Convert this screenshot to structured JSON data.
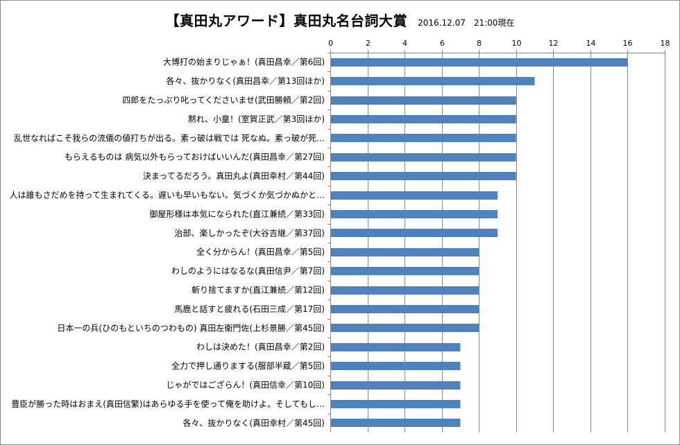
{
  "chart_data": {
    "type": "bar",
    "orientation": "horizontal",
    "title": "【真田丸アワード】真田丸名台詞大賞",
    "subtitle": "2016.12.07　21:00現在",
    "xlim": [
      0,
      18
    ],
    "xticks": [
      0,
      2,
      4,
      6,
      8,
      10,
      12,
      14,
      16,
      18
    ],
    "grid": true,
    "legend": "none",
    "bar_color": "#4f81bd",
    "categories": [
      "大博打の始まりじゃぁ！(真田昌幸／第6回)",
      "各々、抜かりなく(真田昌幸／第13回ほか)",
      "四郎をたっぷり叱ってくださいませ(武田勝頼／第2回)",
      "黙れ、小童！(室賀正武／第3回ほか)",
      "乱世なればこそ我らの流儀の値打ちが出る。素っ破は戦では 死なぬ。素っ破が死…",
      "もらえるものは 病気以外もらっておけばいいんだ(真田昌幸／第27回)",
      "決まってるだろう。真田丸よ(真田幸村／第44回)",
      "人は誰もさだめを持って生まれてくる。遅いも早いもない。気づくか気づかぬかと…",
      "御屋形様は本気になられた(直江兼続／第33回)",
      "治部、楽しかったぞ(大谷吉継／第37回)",
      "全く分からん！(真田昌幸／第5回)",
      "わしのようにはなるな(真田信尹／第7回)",
      "斬り捨てますか(直江兼続／第12回)",
      "馬鹿と話すと疲れる(石田三成／第17回)",
      "日本一の兵(ひのもといちのつわもの) 真田左衛門佐(上杉景勝／第45回)",
      "わしは決めた！(真田昌幸／第2回)",
      "全力で押し通りまする(服部半蔵／第5回)",
      "じゃがではござらん！(真田信幸／第10回)",
      "豊臣が勝った時はおまえ(真田信繁)はあらゆる手を使って俺を助けよ。そしてもし…",
      "各々、抜かりなく(真田幸村／第45回)"
    ],
    "values": [
      16,
      11,
      10,
      10,
      10,
      10,
      10,
      9,
      9,
      9,
      8,
      8,
      8,
      8,
      8,
      7,
      7,
      7,
      7,
      7
    ]
  }
}
